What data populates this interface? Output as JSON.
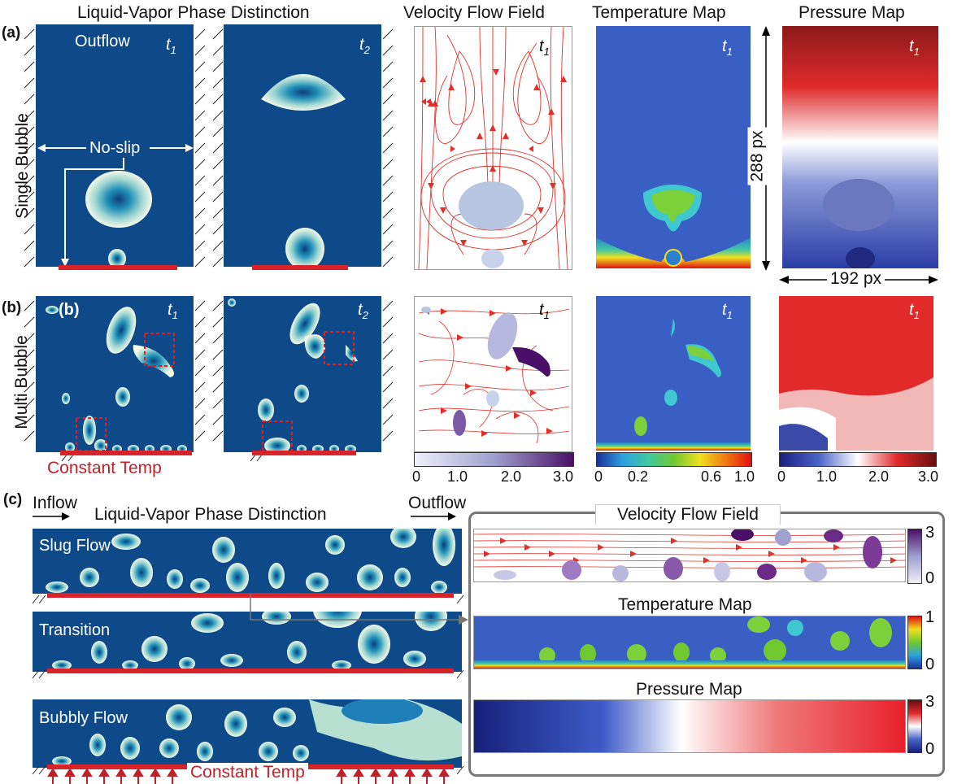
{
  "headers": {
    "phase": "Liquid-Vapor Phase Distinction",
    "velocity": "Velocity Flow Field",
    "temperature": "Temperature Map",
    "pressure": "Pressure Map"
  },
  "rows": {
    "a_tag": "(a)",
    "b_tag": "(b)",
    "c_tag": "(c)",
    "a_label": "Single Bubble",
    "b_label": "Multi Bubble"
  },
  "labels": {
    "outflow": "Outflow",
    "inflow": "Inflow",
    "noslip": "No-slip",
    "constant_temp": "Constant Temp",
    "t1": "t",
    "t1_sub": "1",
    "t2_sub": "2",
    "b_inner": "(b)",
    "height_px": "288 px",
    "width_px": "192 px"
  },
  "regimes": {
    "slug": "Slug Flow",
    "transition": "Transition",
    "bubbly": "Bubbly Flow"
  },
  "c_panels": {
    "velocity": "Velocity Flow Field",
    "temperature": "Temperature Map",
    "pressure": "Pressure Map"
  },
  "colorbars": {
    "velocity": [
      "0",
      "1.0",
      "2.0",
      "3.0"
    ],
    "temperature": [
      "0",
      "0.2",
      "0.6",
      "1.0"
    ],
    "pressure": [
      "0",
      "1.0",
      "2.0",
      "3.0"
    ],
    "c_velocity": [
      "3",
      "0"
    ],
    "c_temperature": [
      "1",
      "0"
    ],
    "c_pressure": [
      "3",
      "0"
    ]
  },
  "colors": {
    "liquid": "#0e4a8a",
    "heater": "#d8232a",
    "streamline": "#e0302a"
  }
}
